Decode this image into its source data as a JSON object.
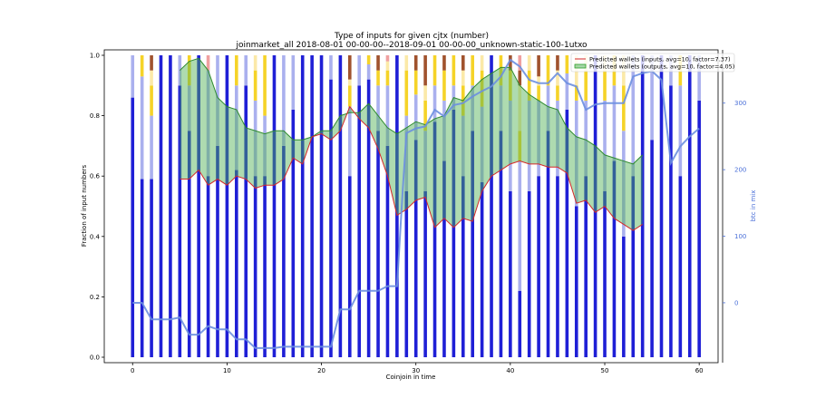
{
  "chart_data": {
    "type": "bar",
    "title": "Type of inputs for given cjtx (number)",
    "subtitle": "joinmarket_all 2018-08-01 00-00-00--2018-09-01 00-00-00_unknown-static-100-1utxo",
    "xlabel": "Coinjoin in time",
    "ylabel": "Fraction of input numbers",
    "y2label": "btc in mix",
    "xlim": [
      -3,
      62
    ],
    "ylim": [
      0,
      1.0
    ],
    "y2lim": [
      -90,
      380
    ],
    "x_ticks": [
      0,
      10,
      20,
      30,
      40,
      50,
      60
    ],
    "y_ticks": [
      0.0,
      0.2,
      0.4,
      0.6,
      0.8,
      1.0
    ],
    "y2_ticks": [
      0,
      100,
      200,
      300
    ],
    "grid": false,
    "legend_position": "top-right",
    "legend": [
      {
        "name": "Predicted wallets (inputs, avg=10, factor=7.37)",
        "color": "#d62728"
      },
      {
        "name": "Predicted wallets (outputs, avg=10, factor=4.05)",
        "color": "#2ca02c"
      }
    ],
    "colors": {
      "blue": "#1f1fd6",
      "light_blue": "#aab0ee",
      "yellow": "#f5d328",
      "light_yellow": "#fbe9a8",
      "brown": "#a0522d",
      "pink": "#f0a0a0",
      "mix_line": "#6b8fe0",
      "fill_green": "#4caf50"
    },
    "stack_order": [
      "blue",
      "light_blue",
      "yellow",
      "light_yellow",
      "brown",
      "pink"
    ],
    "bars": [
      [
        0.86,
        0.14,
        0,
        0,
        0,
        0
      ],
      [
        0.59,
        0.34,
        0.07,
        0,
        0,
        0
      ],
      [
        0.59,
        0.21,
        0.1,
        0.05,
        0.05,
        0
      ],
      [
        1,
        0,
        0,
        0,
        0,
        0
      ],
      [
        1,
        0,
        0,
        0,
        0,
        0
      ],
      [
        0.9,
        0.1,
        0,
        0,
        0,
        0
      ],
      [
        0.75,
        0.15,
        0.1,
        0,
        0,
        0
      ],
      [
        1,
        0,
        0,
        0,
        0,
        0
      ],
      [
        0.6,
        0.35,
        0,
        0,
        0,
        0.05
      ],
      [
        0.7,
        0.3,
        0,
        0,
        0,
        0
      ],
      [
        1,
        0,
        0,
        0,
        0,
        0
      ],
      [
        0.62,
        0.28,
        0.1,
        0,
        0,
        0
      ],
      [
        0.9,
        0.1,
        0,
        0,
        0,
        0
      ],
      [
        0.6,
        0.25,
        0.1,
        0.05,
        0,
        0
      ],
      [
        0.6,
        0.2,
        0.2,
        0,
        0,
        0
      ],
      [
        1,
        0,
        0,
        0,
        0,
        0
      ],
      [
        0.7,
        0.3,
        0,
        0,
        0,
        0
      ],
      [
        0.82,
        0.18,
        0,
        0,
        0,
        0
      ],
      [
        1,
        0,
        0,
        0,
        0,
        0
      ],
      [
        1,
        0,
        0,
        0,
        0,
        0
      ],
      [
        1,
        0,
        0,
        0,
        0,
        0
      ],
      [
        0.92,
        0.08,
        0,
        0,
        0,
        0
      ],
      [
        1,
        0,
        0,
        0,
        0,
        0
      ],
      [
        0.6,
        0.23,
        0.07,
        0.02,
        0.08,
        0
      ],
      [
        0.9,
        0.1,
        0,
        0,
        0,
        0
      ],
      [
        0.92,
        0.05,
        0.03,
        0,
        0,
        0
      ],
      [
        0.75,
        0.15,
        0.05,
        0,
        0.05,
        0
      ],
      [
        0.7,
        0.2,
        0.05,
        0.03,
        0,
        0.02
      ],
      [
        1,
        0,
        0,
        0,
        0,
        0
      ],
      [
        0.55,
        0.25,
        0.15,
        0.05,
        0,
        0
      ],
      [
        0.72,
        0.15,
        0.08,
        0,
        0.05,
        0
      ],
      [
        0.55,
        0.2,
        0.1,
        0.05,
        0.1,
        0
      ],
      [
        0.78,
        0.12,
        0.1,
        0,
        0,
        0
      ],
      [
        0.65,
        0.2,
        0.1,
        0,
        0.05,
        0
      ],
      [
        0.82,
        0.08,
        0.1,
        0,
        0,
        0
      ],
      [
        0.6,
        0.2,
        0.1,
        0.05,
        0.05,
        0
      ],
      [
        0.75,
        0.15,
        0.1,
        0,
        0,
        0
      ],
      [
        0.58,
        0.25,
        0.12,
        0.05,
        0,
        0
      ],
      [
        1,
        0,
        0,
        0,
        0,
        0
      ],
      [
        0.75,
        0.15,
        0.1,
        0,
        0,
        0
      ],
      [
        0.55,
        0.3,
        0.1,
        0,
        0.05,
        0
      ],
      [
        0.22,
        0.43,
        0.1,
        0.15,
        0.05,
        0.05
      ],
      [
        0.55,
        0.3,
        0.1,
        0.05,
        0,
        0
      ],
      [
        0.6,
        0.25,
        0.05,
        0.03,
        0.07,
        0
      ],
      [
        0.75,
        0.15,
        0.1,
        0,
        0,
        0
      ],
      [
        0.6,
        0.25,
        0.05,
        0.05,
        0.05,
        0
      ],
      [
        0.82,
        0.12,
        0.06,
        0,
        0,
        0
      ],
      [
        0.5,
        0.35,
        0.05,
        0.1,
        0,
        0
      ],
      [
        0.6,
        0.25,
        0.1,
        0.05,
        0,
        0
      ],
      [
        1,
        0,
        0,
        0,
        0,
        0
      ],
      [
        0.55,
        0.3,
        0.1,
        0.05,
        0,
        0
      ],
      [
        0.65,
        0.25,
        0.1,
        0,
        0,
        0
      ],
      [
        0.4,
        0.35,
        0.15,
        0.1,
        0,
        0
      ],
      [
        0.6,
        0.4,
        0,
        0,
        0,
        0
      ],
      [
        1,
        0,
        0,
        0,
        0,
        0
      ],
      [
        0.72,
        0.28,
        0,
        0,
        0,
        0
      ],
      [
        1,
        0,
        0,
        0,
        0,
        0
      ],
      [
        0.9,
        0.1,
        0,
        0,
        0,
        0
      ],
      [
        0.6,
        0.3,
        0.1,
        0,
        0,
        0
      ],
      [
        1,
        0,
        0,
        0,
        0,
        0
      ],
      [
        0.85,
        0.15,
        0,
        0,
        0,
        0
      ]
    ],
    "mix_line": [
      {
        "x": 0,
        "y": 0
      },
      {
        "x": 1,
        "y": 0
      },
      {
        "x": 2,
        "y": -25
      },
      {
        "x": 4,
        "y": -25
      },
      {
        "x": 5,
        "y": -22
      },
      {
        "x": 6,
        "y": -48
      },
      {
        "x": 7,
        "y": -48
      },
      {
        "x": 8,
        "y": -35
      },
      {
        "x": 9,
        "y": -40
      },
      {
        "x": 10,
        "y": -40
      },
      {
        "x": 11,
        "y": -55
      },
      {
        "x": 12,
        "y": -55
      },
      {
        "x": 13,
        "y": -68
      },
      {
        "x": 14,
        "y": -68
      },
      {
        "x": 15,
        "y": -68
      },
      {
        "x": 16,
        "y": -66
      },
      {
        "x": 21,
        "y": -66
      },
      {
        "x": 22,
        "y": -10
      },
      {
        "x": 23,
        "y": -10
      },
      {
        "x": 24,
        "y": 18
      },
      {
        "x": 26,
        "y": 18
      },
      {
        "x": 27,
        "y": 25
      },
      {
        "x": 28,
        "y": 25
      },
      {
        "x": 28.6,
        "y": 168
      },
      {
        "x": 29,
        "y": 255
      },
      {
        "x": 30,
        "y": 262
      },
      {
        "x": 31,
        "y": 265
      },
      {
        "x": 32,
        "y": 290
      },
      {
        "x": 33,
        "y": 280
      },
      {
        "x": 34,
        "y": 297
      },
      {
        "x": 35,
        "y": 300
      },
      {
        "x": 36,
        "y": 310
      },
      {
        "x": 37,
        "y": 318
      },
      {
        "x": 38,
        "y": 325
      },
      {
        "x": 39,
        "y": 340
      },
      {
        "x": 40,
        "y": 365
      },
      {
        "x": 41,
        "y": 355
      },
      {
        "x": 42,
        "y": 335
      },
      {
        "x": 43,
        "y": 330
      },
      {
        "x": 44,
        "y": 330
      },
      {
        "x": 45,
        "y": 345
      },
      {
        "x": 46,
        "y": 330
      },
      {
        "x": 47,
        "y": 325
      },
      {
        "x": 48,
        "y": 290
      },
      {
        "x": 49,
        "y": 298
      },
      {
        "x": 50,
        "y": 300
      },
      {
        "x": 51,
        "y": 300
      },
      {
        "x": 52,
        "y": 300
      },
      {
        "x": 53,
        "y": 340
      },
      {
        "x": 54,
        "y": 345
      },
      {
        "x": 55,
        "y": 348
      },
      {
        "x": 56,
        "y": 335
      },
      {
        "x": 57,
        "y": 210
      },
      {
        "x": 58,
        "y": 235
      },
      {
        "x": 59,
        "y": 250
      },
      {
        "x": 60,
        "y": 262
      }
    ],
    "band_upper": [
      {
        "x": 5,
        "y": 0.95
      },
      {
        "x": 6,
        "y": 0.98
      },
      {
        "x": 7,
        "y": 0.99
      },
      {
        "x": 8,
        "y": 0.95
      },
      {
        "x": 9,
        "y": 0.86
      },
      {
        "x": 10,
        "y": 0.83
      },
      {
        "x": 11,
        "y": 0.82
      },
      {
        "x": 12,
        "y": 0.76
      },
      {
        "x": 13,
        "y": 0.75
      },
      {
        "x": 14,
        "y": 0.74
      },
      {
        "x": 15,
        "y": 0.75
      },
      {
        "x": 16,
        "y": 0.75
      },
      {
        "x": 17,
        "y": 0.72
      },
      {
        "x": 18,
        "y": 0.72
      },
      {
        "x": 19,
        "y": 0.73
      },
      {
        "x": 20,
        "y": 0.75
      },
      {
        "x": 21,
        "y": 0.75
      },
      {
        "x": 22,
        "y": 0.8
      },
      {
        "x": 23,
        "y": 0.81
      },
      {
        "x": 24,
        "y": 0.81
      },
      {
        "x": 25,
        "y": 0.84
      },
      {
        "x": 26,
        "y": 0.8
      },
      {
        "x": 27,
        "y": 0.76
      },
      {
        "x": 28,
        "y": 0.74
      },
      {
        "x": 29,
        "y": 0.76
      },
      {
        "x": 30,
        "y": 0.78
      },
      {
        "x": 31,
        "y": 0.77
      },
      {
        "x": 32,
        "y": 0.79
      },
      {
        "x": 33,
        "y": 0.8
      },
      {
        "x": 34,
        "y": 0.86
      },
      {
        "x": 35,
        "y": 0.85
      },
      {
        "x": 36,
        "y": 0.89
      },
      {
        "x": 37,
        "y": 0.92
      },
      {
        "x": 38,
        "y": 0.94
      },
      {
        "x": 39,
        "y": 0.96
      },
      {
        "x": 40,
        "y": 0.96
      },
      {
        "x": 41,
        "y": 0.9
      },
      {
        "x": 42,
        "y": 0.87
      },
      {
        "x": 43,
        "y": 0.85
      },
      {
        "x": 44,
        "y": 0.83
      },
      {
        "x": 45,
        "y": 0.82
      },
      {
        "x": 46,
        "y": 0.76
      },
      {
        "x": 47,
        "y": 0.73
      },
      {
        "x": 48,
        "y": 0.72
      },
      {
        "x": 49,
        "y": 0.7
      },
      {
        "x": 50,
        "y": 0.67
      },
      {
        "x": 51,
        "y": 0.66
      },
      {
        "x": 52,
        "y": 0.65
      },
      {
        "x": 53,
        "y": 0.64
      },
      {
        "x": 54,
        "y": 0.67
      }
    ],
    "band_lower": [
      {
        "x": 5,
        "y": 0.59
      },
      {
        "x": 6,
        "y": 0.59
      },
      {
        "x": 7,
        "y": 0.62
      },
      {
        "x": 8,
        "y": 0.57
      },
      {
        "x": 9,
        "y": 0.59
      },
      {
        "x": 10,
        "y": 0.57
      },
      {
        "x": 11,
        "y": 0.6
      },
      {
        "x": 12,
        "y": 0.59
      },
      {
        "x": 13,
        "y": 0.56
      },
      {
        "x": 14,
        "y": 0.57
      },
      {
        "x": 15,
        "y": 0.57
      },
      {
        "x": 16,
        "y": 0.59
      },
      {
        "x": 17,
        "y": 0.66
      },
      {
        "x": 18,
        "y": 0.64
      },
      {
        "x": 19,
        "y": 0.73
      },
      {
        "x": 20,
        "y": 0.74
      },
      {
        "x": 21,
        "y": 0.72
      },
      {
        "x": 22,
        "y": 0.75
      },
      {
        "x": 23,
        "y": 0.83
      },
      {
        "x": 24,
        "y": 0.79
      },
      {
        "x": 25,
        "y": 0.76
      },
      {
        "x": 26,
        "y": 0.69
      },
      {
        "x": 27,
        "y": 0.6
      },
      {
        "x": 28,
        "y": 0.47
      },
      {
        "x": 29,
        "y": 0.49
      },
      {
        "x": 30,
        "y": 0.52
      },
      {
        "x": 31,
        "y": 0.53
      },
      {
        "x": 32,
        "y": 0.43
      },
      {
        "x": 33,
        "y": 0.46
      },
      {
        "x": 34,
        "y": 0.43
      },
      {
        "x": 35,
        "y": 0.46
      },
      {
        "x": 36,
        "y": 0.45
      },
      {
        "x": 37,
        "y": 0.55
      },
      {
        "x": 38,
        "y": 0.6
      },
      {
        "x": 39,
        "y": 0.62
      },
      {
        "x": 40,
        "y": 0.64
      },
      {
        "x": 41,
        "y": 0.65
      },
      {
        "x": 42,
        "y": 0.64
      },
      {
        "x": 43,
        "y": 0.64
      },
      {
        "x": 44,
        "y": 0.63
      },
      {
        "x": 45,
        "y": 0.63
      },
      {
        "x": 46,
        "y": 0.61
      },
      {
        "x": 47,
        "y": 0.51
      },
      {
        "x": 48,
        "y": 0.52
      },
      {
        "x": 49,
        "y": 0.48
      },
      {
        "x": 50,
        "y": 0.5
      },
      {
        "x": 51,
        "y": 0.46
      },
      {
        "x": 52,
        "y": 0.44
      },
      {
        "x": 53,
        "y": 0.42
      },
      {
        "x": 54,
        "y": 0.44
      }
    ]
  }
}
